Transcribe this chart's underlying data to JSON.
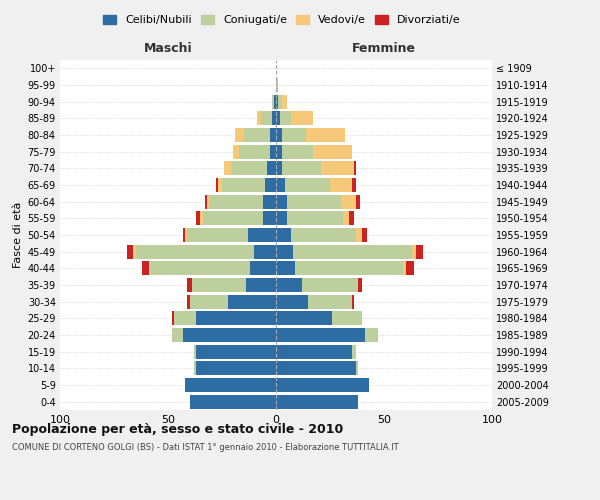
{
  "age_groups": [
    "0-4",
    "5-9",
    "10-14",
    "15-19",
    "20-24",
    "25-29",
    "30-34",
    "35-39",
    "40-44",
    "45-49",
    "50-54",
    "55-59",
    "60-64",
    "65-69",
    "70-74",
    "75-79",
    "80-84",
    "85-89",
    "90-94",
    "95-99",
    "100+"
  ],
  "birth_years": [
    "2005-2009",
    "2000-2004",
    "1995-1999",
    "1990-1994",
    "1985-1989",
    "1980-1984",
    "1975-1979",
    "1970-1974",
    "1965-1969",
    "1960-1964",
    "1955-1959",
    "1950-1954",
    "1945-1949",
    "1940-1944",
    "1935-1939",
    "1930-1934",
    "1925-1929",
    "1920-1924",
    "1915-1919",
    "1910-1914",
    "≤ 1909"
  ],
  "male": {
    "celibi": [
      40,
      42,
      37,
      37,
      43,
      37,
      22,
      14,
      12,
      10,
      13,
      6,
      6,
      5,
      4,
      3,
      3,
      2,
      1,
      0,
      0
    ],
    "coniugati": [
      0,
      0,
      1,
      1,
      5,
      10,
      18,
      25,
      47,
      55,
      28,
      28,
      25,
      20,
      17,
      14,
      12,
      5,
      1,
      0,
      0
    ],
    "vedovi": [
      0,
      0,
      0,
      0,
      0,
      0,
      0,
      0,
      0,
      1,
      1,
      1,
      1,
      2,
      3,
      3,
      4,
      2,
      0,
      0,
      0
    ],
    "divorziati": [
      0,
      0,
      0,
      0,
      0,
      1,
      1,
      2,
      3,
      3,
      1,
      2,
      1,
      1,
      0,
      0,
      0,
      0,
      0,
      0,
      0
    ]
  },
  "female": {
    "nubili": [
      38,
      43,
      37,
      35,
      41,
      26,
      15,
      12,
      9,
      8,
      7,
      5,
      5,
      4,
      3,
      3,
      3,
      2,
      1,
      0,
      0
    ],
    "coniugate": [
      0,
      0,
      1,
      2,
      6,
      14,
      20,
      26,
      50,
      55,
      30,
      26,
      25,
      21,
      18,
      14,
      11,
      5,
      2,
      1,
      0
    ],
    "vedove": [
      0,
      0,
      0,
      0,
      0,
      0,
      0,
      0,
      1,
      2,
      3,
      3,
      7,
      10,
      15,
      18,
      18,
      10,
      2,
      0,
      0
    ],
    "divorziate": [
      0,
      0,
      0,
      0,
      0,
      0,
      1,
      2,
      4,
      3,
      2,
      2,
      2,
      2,
      1,
      0,
      0,
      0,
      0,
      0,
      0
    ]
  },
  "colors": {
    "celibi": "#2E6DA4",
    "coniugati": "#BECF9E",
    "vedovi": "#F5C87A",
    "divorziati": "#CC2222"
  },
  "xlim": 100,
  "title": "Popolazione per età, sesso e stato civile - 2010",
  "subtitle": "COMUNE DI CORTENO GOLGI (BS) - Dati ISTAT 1° gennaio 2010 - Elaborazione TUTTITALIA.IT",
  "xlabel_left": "Maschi",
  "xlabel_right": "Femmine",
  "ylabel_left": "Fasce di età",
  "legend_labels": [
    "Celibi/Nubili",
    "Coniugati/e",
    "Vedovi/e",
    "Divorziati/e"
  ],
  "bg_color": "#f0f0f0",
  "plot_bg_color": "#ffffff"
}
